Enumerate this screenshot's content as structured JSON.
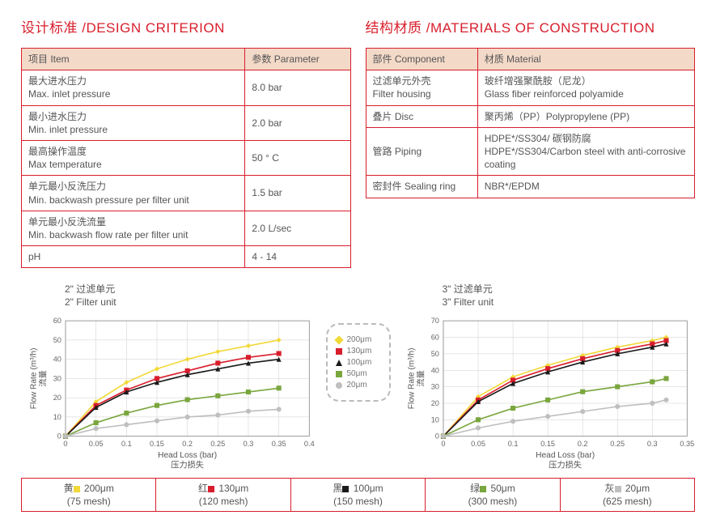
{
  "design": {
    "title": "设计标准 /DESIGN CRITERION",
    "headers": [
      "项目 Item",
      "参数 Parameter"
    ],
    "rows": [
      [
        "最大进水压力\nMax. inlet pressure",
        "8.0 bar"
      ],
      [
        "最小进水压力\nMin. inlet pressure",
        "2.0 bar"
      ],
      [
        "最高操作温度\nMax temperature",
        "50 ° C"
      ],
      [
        "单元最小反洗压力\nMin. backwash pressure per filter unit",
        "1.5 bar"
      ],
      [
        "单元最小反洗流量\nMin. backwash flow rate per filter unit",
        "2.0 L/sec"
      ],
      [
        "pH",
        "4 - 14"
      ]
    ]
  },
  "materials": {
    "title": "结构材质 /MATERIALS OF CONSTRUCTION",
    "headers": [
      "部件 Component",
      "材质 Material"
    ],
    "rows": [
      [
        "过滤单元外壳\nFilter housing",
        "玻纤增强聚酰胺（尼龙）\nGlass fiber reinforced polyamide"
      ],
      [
        "叠片 Disc",
        "聚丙烯（PP）Polypropylene (PP)"
      ],
      [
        "管路 Piping",
        "HDPE*/SS304/ 碳钢防腐\nHDPE*/SS304/Carbon steel with anti-corrosive coating"
      ],
      [
        "密封件 Sealing ring",
        "NBR*/EPDM"
      ]
    ]
  },
  "legend_items": [
    {
      "label": "200μm",
      "color": "#f2d93a",
      "marker": "diamond"
    },
    {
      "label": "130μm",
      "color": "#d81e2c",
      "marker": "square"
    },
    {
      "label": "100μm",
      "color": "#1a1a1a",
      "marker": "triangle"
    },
    {
      "label": "50μm",
      "color": "#7aa63e",
      "marker": "square"
    },
    {
      "label": "20μm",
      "color": "#bfbfbf",
      "marker": "circle"
    }
  ],
  "chart1": {
    "title_cn": "2\" 过滤单元",
    "title_en": "2\" Filter unit",
    "xlabel_en": "Head Loss (bar)",
    "xlabel_cn": "压力损失",
    "ylabel_cn": "流量",
    "ylabel_en": "Flow Rate (m³/h)",
    "xlim": [
      0,
      0.4
    ],
    "ylim": [
      0,
      60
    ],
    "xticks": [
      0,
      0.05,
      0.1,
      0.15,
      0.2,
      0.25,
      0.3,
      0.35,
      0.4
    ],
    "yticks": [
      0,
      10,
      20,
      30,
      40,
      50,
      60
    ],
    "series": [
      {
        "color": "#f2d93a",
        "marker": "diamond",
        "data": [
          [
            0,
            0
          ],
          [
            0.05,
            18
          ],
          [
            0.1,
            28
          ],
          [
            0.15,
            35
          ],
          [
            0.2,
            40
          ],
          [
            0.25,
            44
          ],
          [
            0.3,
            47
          ],
          [
            0.35,
            50
          ]
        ]
      },
      {
        "color": "#d81e2c",
        "marker": "square",
        "data": [
          [
            0,
            0
          ],
          [
            0.05,
            16
          ],
          [
            0.1,
            24
          ],
          [
            0.15,
            30
          ],
          [
            0.2,
            34
          ],
          [
            0.25,
            38
          ],
          [
            0.3,
            41
          ],
          [
            0.35,
            43
          ]
        ]
      },
      {
        "color": "#1a1a1a",
        "marker": "triangle",
        "data": [
          [
            0,
            0
          ],
          [
            0.05,
            15
          ],
          [
            0.1,
            23
          ],
          [
            0.15,
            28
          ],
          [
            0.2,
            32
          ],
          [
            0.25,
            35
          ],
          [
            0.3,
            38
          ],
          [
            0.35,
            40
          ]
        ]
      },
      {
        "color": "#7aa63e",
        "marker": "square",
        "data": [
          [
            0,
            0
          ],
          [
            0.05,
            7
          ],
          [
            0.1,
            12
          ],
          [
            0.15,
            16
          ],
          [
            0.2,
            19
          ],
          [
            0.25,
            21
          ],
          [
            0.3,
            23
          ],
          [
            0.35,
            25
          ]
        ]
      },
      {
        "color": "#bfbfbf",
        "marker": "circle",
        "data": [
          [
            0,
            0
          ],
          [
            0.05,
            4
          ],
          [
            0.1,
            6
          ],
          [
            0.15,
            8
          ],
          [
            0.2,
            10
          ],
          [
            0.25,
            11
          ],
          [
            0.3,
            13
          ],
          [
            0.35,
            14
          ]
        ]
      }
    ]
  },
  "chart2": {
    "title_cn": "3\" 过滤单元",
    "title_en": "3\" Filter unit",
    "xlabel_en": "Head Loss (bar)",
    "xlabel_cn": "压力损失",
    "ylabel_cn": "流量",
    "ylabel_en": "Flow Rate (m³/h)",
    "xlim": [
      0,
      0.35
    ],
    "ylim": [
      0,
      70
    ],
    "xticks": [
      0,
      0.05,
      0.1,
      0.15,
      0.2,
      0.25,
      0.3,
      0.35
    ],
    "yticks": [
      0,
      10,
      20,
      30,
      40,
      50,
      60,
      70
    ],
    "series": [
      {
        "color": "#f2d93a",
        "marker": "diamond",
        "data": [
          [
            0,
            0
          ],
          [
            0.05,
            24
          ],
          [
            0.1,
            36
          ],
          [
            0.15,
            43
          ],
          [
            0.2,
            49
          ],
          [
            0.25,
            54
          ],
          [
            0.3,
            58
          ],
          [
            0.32,
            60
          ]
        ]
      },
      {
        "color": "#d81e2c",
        "marker": "square",
        "data": [
          [
            0,
            0
          ],
          [
            0.05,
            22
          ],
          [
            0.1,
            34
          ],
          [
            0.15,
            41
          ],
          [
            0.2,
            47
          ],
          [
            0.25,
            52
          ],
          [
            0.3,
            56
          ],
          [
            0.32,
            58
          ]
        ]
      },
      {
        "color": "#1a1a1a",
        "marker": "triangle",
        "data": [
          [
            0,
            0
          ],
          [
            0.05,
            21
          ],
          [
            0.1,
            32
          ],
          [
            0.15,
            39
          ],
          [
            0.2,
            45
          ],
          [
            0.25,
            50
          ],
          [
            0.3,
            54
          ],
          [
            0.32,
            56
          ]
        ]
      },
      {
        "color": "#7aa63e",
        "marker": "square",
        "data": [
          [
            0,
            0
          ],
          [
            0.05,
            10
          ],
          [
            0.1,
            17
          ],
          [
            0.15,
            22
          ],
          [
            0.2,
            27
          ],
          [
            0.25,
            30
          ],
          [
            0.3,
            33
          ],
          [
            0.32,
            35
          ]
        ]
      },
      {
        "color": "#bfbfbf",
        "marker": "circle",
        "data": [
          [
            0,
            0
          ],
          [
            0.05,
            5
          ],
          [
            0.1,
            9
          ],
          [
            0.15,
            12
          ],
          [
            0.2,
            15
          ],
          [
            0.25,
            18
          ],
          [
            0.3,
            20
          ],
          [
            0.32,
            22
          ]
        ]
      }
    ]
  },
  "legend_bar": [
    {
      "cn": "黄",
      "label": "200μm",
      "mesh": "(75 mesh)",
      "color": "#f2d93a"
    },
    {
      "cn": "红",
      "label": "130μm",
      "mesh": "(120 mesh)",
      "color": "#d81e2c"
    },
    {
      "cn": "黑",
      "label": "100μm",
      "mesh": "(150 mesh)",
      "color": "#1a1a1a"
    },
    {
      "cn": "绿",
      "label": "50μm",
      "mesh": "(300 mesh)",
      "color": "#7aa63e"
    },
    {
      "cn": "灰",
      "label": "20μm",
      "mesh": "(625 mesh)",
      "color": "#bfbfbf"
    }
  ],
  "chart_style": {
    "grid_color": "#cfcfcf",
    "axis_color": "#888",
    "tick_font": 9,
    "label_font": 10,
    "line_width": 1.6,
    "marker_size": 3
  }
}
